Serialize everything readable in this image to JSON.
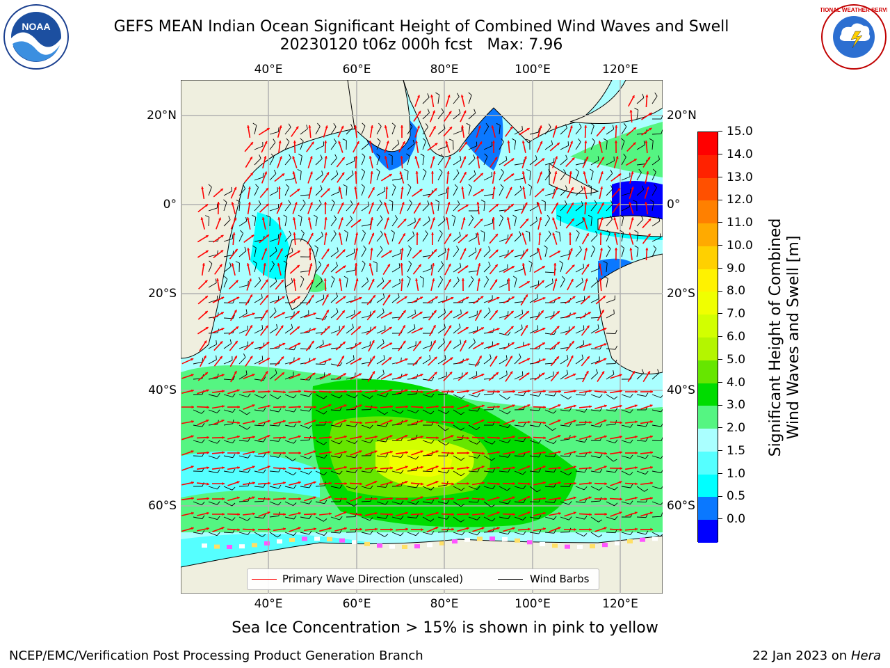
{
  "title": {
    "line1": "GEFS MEAN Indian Ocean Significant Height of Combined Wind Waves and Swell",
    "line2": "20230120 t06z 000h fcst   Max: 7.96"
  },
  "logos": {
    "noaa_text": "NOAA",
    "nws_text": "NATIONAL WEATHER SERVICE"
  },
  "map": {
    "lon_ticks": [
      "40°E",
      "60°E",
      "80°E",
      "100°E",
      "120°E"
    ],
    "lat_ticks": [
      "20°N",
      "0°",
      "20°S",
      "40°S",
      "60°S"
    ],
    "colors": {
      "land": "#efefdf",
      "frame": "#000000",
      "grid": "#b0b0b0"
    },
    "legend": {
      "wave_label": "Primary Wave Direction (unscaled)",
      "wind_label": "Wind Barbs",
      "wave_color": "#ff0000",
      "wind_color": "#000000"
    }
  },
  "colorbar": {
    "label_line1": "Significant Height of Combined",
    "label_line2": "Wind Waves and Swell [m]",
    "ticks": [
      "15.0",
      "14.0",
      "13.0",
      "12.0",
      "11.0",
      "10.0",
      "9.0",
      "8.0",
      "7.0",
      "6.0",
      "5.0",
      "4.0",
      "3.0",
      "2.0",
      "1.5",
      "1.0",
      "0.5",
      "0.0"
    ],
    "colors": [
      "#ff0000",
      "#ff2200",
      "#ff5000",
      "#ff8000",
      "#ffaa00",
      "#ffd000",
      "#fff200",
      "#f0ff00",
      "#d2ff00",
      "#b4f500",
      "#66e600",
      "#00dc00",
      "#55f582",
      "#aaffff",
      "#55ffff",
      "#00ffff",
      "#0a78ff",
      "#0000ff"
    ]
  },
  "notes": {
    "ice": "Sea Ice Concentration > 15% is shown in pink to yellow",
    "footer_left": "NCEP/EMC/Verification Post Processing Product Generation Branch",
    "footer_date": "22 Jan 2023 on ",
    "footer_host": "Hera"
  }
}
